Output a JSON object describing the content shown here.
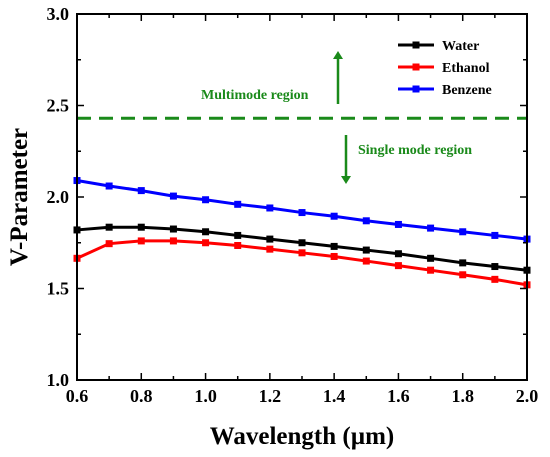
{
  "chart_data": {
    "type": "line",
    "title": "",
    "xlabel": "Wavelength (µm)",
    "ylabel": "V-Parameter",
    "xlim": [
      0.6,
      2.0
    ],
    "ylim": [
      1.0,
      3.0
    ],
    "x_ticks": [
      "0.6",
      "0.8",
      "1.0",
      "1.2",
      "1.4",
      "1.6",
      "1.8",
      "2.0"
    ],
    "y_ticks": [
      "1.0",
      "1.5",
      "2.0",
      "2.5",
      "3.0"
    ],
    "x": [
      0.6,
      0.7,
      0.8,
      0.9,
      1.0,
      1.1,
      1.2,
      1.3,
      1.4,
      1.5,
      1.6,
      1.7,
      1.8,
      1.9,
      2.0
    ],
    "grid": false,
    "legend_position": "top-right",
    "series": [
      {
        "name": "Water",
        "color": "#000000",
        "marker": "square",
        "values": [
          1.82,
          1.835,
          1.835,
          1.825,
          1.81,
          1.79,
          1.77,
          1.75,
          1.73,
          1.71,
          1.69,
          1.665,
          1.64,
          1.62,
          1.6
        ]
      },
      {
        "name": "Ethanol",
        "color": "#ff0000",
        "marker": "square",
        "values": [
          1.665,
          1.745,
          1.76,
          1.76,
          1.75,
          1.735,
          1.715,
          1.695,
          1.675,
          1.65,
          1.625,
          1.6,
          1.575,
          1.55,
          1.52
        ]
      },
      {
        "name": "Benzene",
        "color": "#0000ff",
        "marker": "square",
        "values": [
          2.09,
          2.06,
          2.035,
          2.005,
          1.985,
          1.96,
          1.94,
          1.915,
          1.895,
          1.87,
          1.85,
          1.83,
          1.81,
          1.79,
          1.77
        ]
      }
    ],
    "reference_line": {
      "y": 2.43,
      "style": "dashed",
      "color": "#1a8a1a"
    },
    "annotations": [
      {
        "id": "multimode",
        "text": "Multimode region",
        "arrow": "up",
        "color": "#1a8a1a"
      },
      {
        "id": "singlemode",
        "text": "Single mode region",
        "arrow": "down",
        "color": "#1a8a1a"
      }
    ]
  }
}
